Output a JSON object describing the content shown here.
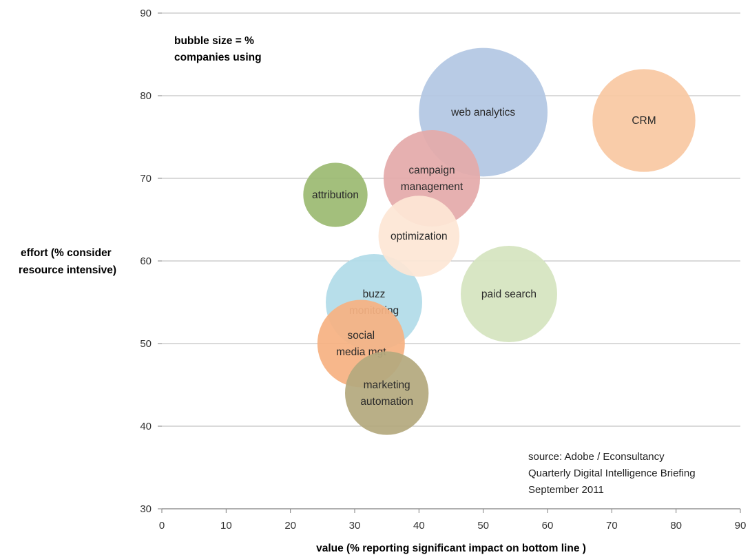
{
  "chart_data": {
    "type": "scatter",
    "subtype": "bubble",
    "title": "",
    "xlabel": "value (% reporting significant impact on bottom line )",
    "ylabel_lines": [
      "effort (% consider",
      "resource intensive)"
    ],
    "xlim": [
      0,
      90
    ],
    "ylim": [
      30,
      90
    ],
    "xticks": [
      0,
      10,
      20,
      30,
      40,
      50,
      60,
      70,
      80,
      90
    ],
    "yticks": [
      30,
      40,
      50,
      60,
      70,
      80,
      90
    ],
    "grid": "horizontal",
    "size_note_lines": [
      "bubble size = %",
      "companies using"
    ],
    "source_lines": [
      "source: Adobe /  Econsultancy",
      "Quarterly Digital Intelligence Briefing",
      "September 2011"
    ],
    "bubbles": [
      {
        "label_lines": [
          "web analytics"
        ],
        "x": 50,
        "y": 78,
        "r_x": 10,
        "color": "#b3c7e3"
      },
      {
        "label_lines": [
          "CRM"
        ],
        "x": 75,
        "y": 77,
        "r_x": 8,
        "color": "#f9c8a3"
      },
      {
        "label_lines": [
          "campaign",
          "management"
        ],
        "x": 42,
        "y": 70,
        "r_x": 7.5,
        "color": "#e4aaaa"
      },
      {
        "label_lines": [
          "attribution"
        ],
        "x": 27,
        "y": 68,
        "r_x": 5,
        "color": "#9cba72"
      },
      {
        "label_lines": [
          "paid search"
        ],
        "x": 54,
        "y": 56,
        "r_x": 7.5,
        "color": "#d5e4bf"
      },
      {
        "label_lines": [
          "buzz",
          "monitoring"
        ],
        "x": 33,
        "y": 55,
        "r_x": 7.5,
        "color": "#b1dbe8"
      },
      {
        "label_lines": [
          "optimization"
        ],
        "x": 40,
        "y": 63,
        "r_x": 6.3,
        "color": "#fde6d5"
      },
      {
        "label_lines": [
          "social",
          "media mgt"
        ],
        "x": 31,
        "y": 50,
        "r_x": 6.8,
        "color": "#f6b282"
      },
      {
        "label_lines": [
          "marketing",
          "automation"
        ],
        "x": 35,
        "y": 44,
        "r_x": 6.5,
        "color": "#b4a97e"
      }
    ]
  }
}
